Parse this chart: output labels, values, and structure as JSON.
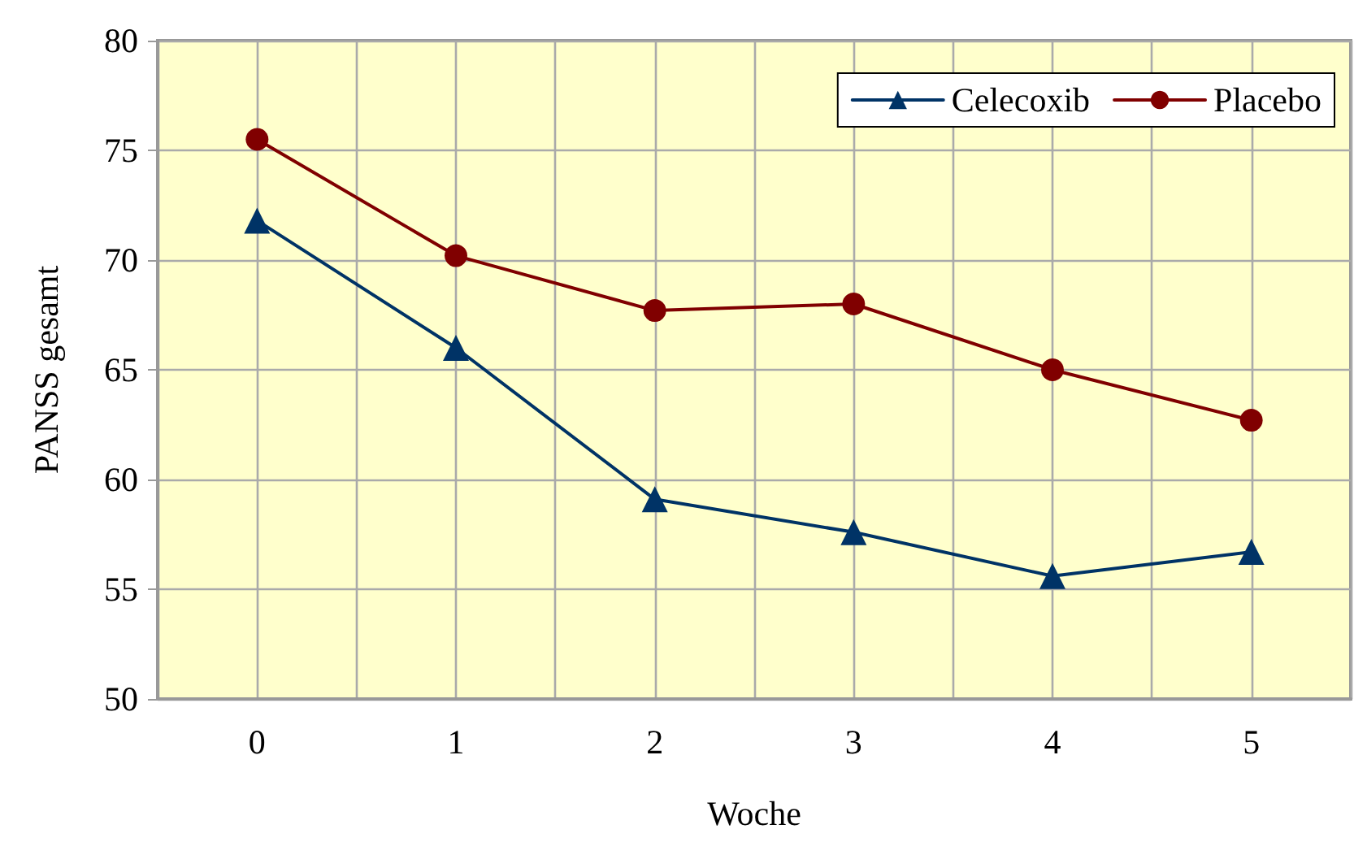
{
  "chart_data": {
    "type": "line",
    "xlabel": "Woche",
    "ylabel": "PANSS gesamt",
    "categories": [
      "0",
      "1",
      "2",
      "3",
      "4",
      "5"
    ],
    "series": [
      {
        "name": "Celecoxib",
        "color": "#003366",
        "marker": "triangle",
        "values": [
          71.8,
          66.0,
          59.1,
          57.6,
          55.6,
          56.7
        ]
      },
      {
        "name": "Placebo",
        "color": "#800000",
        "marker": "circle",
        "values": [
          75.5,
          70.2,
          67.7,
          68.0,
          65.0,
          62.7
        ]
      }
    ],
    "ylim": [
      50,
      80
    ],
    "yticks": [
      50,
      55,
      60,
      65,
      70,
      75,
      80
    ],
    "grid": true,
    "legend": "top right",
    "line_style": "solid"
  }
}
